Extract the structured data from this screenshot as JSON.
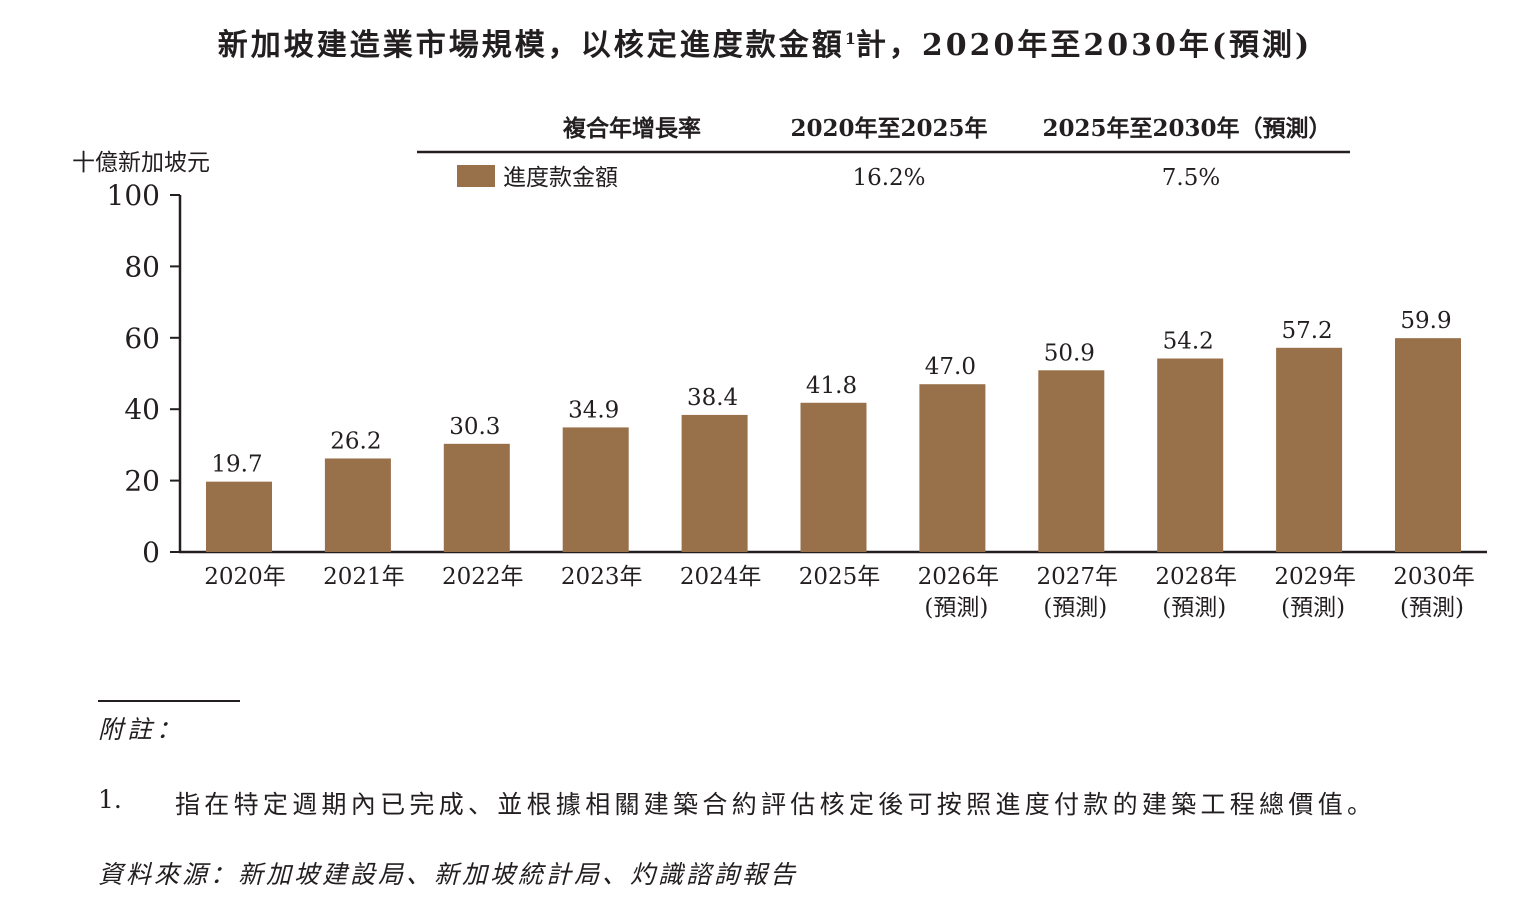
{
  "title": {
    "main": "新加坡建造業市場規模，以核定進度款金額",
    "sup": "1",
    "rest": "計，2020年至2030年(預測)"
  },
  "cagr_table": {
    "header_label": "複合年增長率",
    "period_1": "2020年至2025年",
    "period_2": "2025年至2030年（預測）",
    "row_label": "進度款金額",
    "value_1": "16.2%",
    "value_2": "7.5%"
  },
  "chart_data": {
    "type": "bar",
    "title": "新加坡建造業市場規模，以核定進度款金額計，2020年至2030年(預測)",
    "ylabel": "十億新加坡元",
    "ylim": [
      0,
      100
    ],
    "yticks": [
      0,
      20,
      40,
      60,
      80,
      100
    ],
    "categories": [
      "2020年",
      "2021年",
      "2022年",
      "2023年",
      "2024年",
      "2025年",
      "2026年",
      "2027年",
      "2028年",
      "2029年",
      "2030年"
    ],
    "category_sublabels": [
      "",
      "",
      "",
      "",
      "",
      "",
      "(預測)",
      "(預測)",
      "(預測)",
      "(預測)",
      "(預測)"
    ],
    "series": [
      {
        "name": "進度款金額",
        "values": [
          19.7,
          26.2,
          30.3,
          34.9,
          38.4,
          41.8,
          47.0,
          50.9,
          54.2,
          57.2,
          59.9
        ],
        "color": "#98714a"
      }
    ],
    "data_labels": [
      "19.7",
      "26.2",
      "30.3",
      "34.9",
      "38.4",
      "41.8",
      "47.0",
      "50.9",
      "54.2",
      "57.2",
      "59.9"
    ],
    "legend_placement": "top",
    "grid": false
  },
  "notes": {
    "heading": "附註：",
    "items": [
      {
        "num": "1.",
        "text": "指在特定週期內已完成、並根據相關建築合約評估核定後可按照進度付款的建築工程總價值。"
      }
    ],
    "source": "資料來源：新加坡建設局、新加坡統計局、灼識諮詢報告"
  },
  "colors": {
    "bar": "#98714a",
    "axis": "#231f20",
    "text": "#231f20"
  }
}
